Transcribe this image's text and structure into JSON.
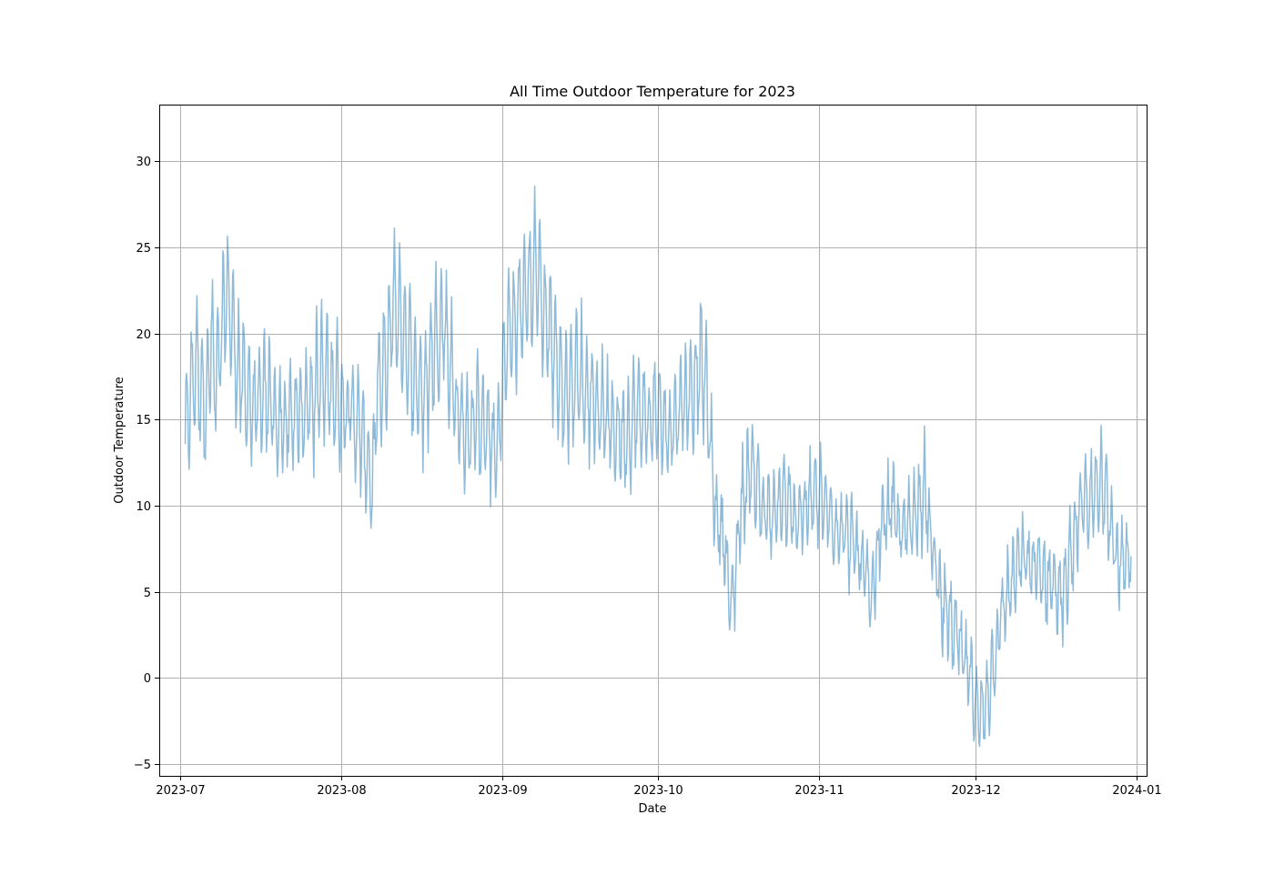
{
  "chart_data": {
    "type": "line",
    "title": "All Time Outdoor Temperature for 2023",
    "xlabel": "Date",
    "ylabel": "Outdoor Temperature",
    "xlim": [
      "2023-06-27",
      "2024-01-03"
    ],
    "ylim": [
      -5.7,
      33.3
    ],
    "grid": true,
    "series_color": "#1f77b4",
    "series_alpha": 0.5,
    "x_ticks": [
      {
        "date": "2023-07-01",
        "label": "2023-07"
      },
      {
        "date": "2023-08-01",
        "label": "2023-08"
      },
      {
        "date": "2023-09-01",
        "label": "2023-09"
      },
      {
        "date": "2023-10-01",
        "label": "2023-10"
      },
      {
        "date": "2023-11-01",
        "label": "2023-11"
      },
      {
        "date": "2023-12-01",
        "label": "2023-12"
      },
      {
        "date": "2024-01-01",
        "label": "2024-01"
      }
    ],
    "y_ticks": [
      {
        "value": -5,
        "label": "−5"
      },
      {
        "value": 0,
        "label": "0"
      },
      {
        "value": 5,
        "label": "5"
      },
      {
        "value": 10,
        "label": "10"
      },
      {
        "value": 15,
        "label": "15"
      },
      {
        "value": 20,
        "label": "20"
      },
      {
        "value": 25,
        "label": "25"
      },
      {
        "value": 30,
        "label": "30"
      }
    ],
    "series": [
      {
        "x": [
          "2023-07-02",
          "2023-07-04",
          "2023-07-06",
          "2023-07-07",
          "2023-07-08",
          "2023-07-10",
          "2023-07-12",
          "2023-07-14",
          "2023-07-16",
          "2023-07-18",
          "2023-07-20",
          "2023-07-22",
          "2023-07-24",
          "2023-07-26",
          "2023-07-28",
          "2023-07-30",
          "2023-08-01",
          "2023-08-03",
          "2023-08-05",
          "2023-08-07",
          "2023-08-08",
          "2023-08-10",
          "2023-08-11",
          "2023-08-13",
          "2023-08-15",
          "2023-08-17",
          "2023-08-19",
          "2023-08-21",
          "2023-08-23",
          "2023-08-25",
          "2023-08-27",
          "2023-08-29",
          "2023-08-31",
          "2023-09-02",
          "2023-09-04",
          "2023-09-06",
          "2023-09-08",
          "2023-09-09",
          "2023-09-11",
          "2023-09-13",
          "2023-09-15",
          "2023-09-17",
          "2023-09-19",
          "2023-09-21",
          "2023-09-23",
          "2023-09-25",
          "2023-09-27",
          "2023-09-29",
          "2023-10-01",
          "2023-10-03",
          "2023-10-05",
          "2023-10-07",
          "2023-10-09",
          "2023-10-10",
          "2023-10-12",
          "2023-10-14",
          "2023-10-15",
          "2023-10-17",
          "2023-10-19",
          "2023-10-21",
          "2023-10-23",
          "2023-10-25",
          "2023-10-27",
          "2023-10-29",
          "2023-10-31",
          "2023-11-02",
          "2023-11-04",
          "2023-11-06",
          "2023-11-08",
          "2023-11-10",
          "2023-11-11",
          "2023-11-13",
          "2023-11-15",
          "2023-11-17",
          "2023-11-19",
          "2023-11-21",
          "2023-11-23",
          "2023-11-25",
          "2023-11-27",
          "2023-11-29",
          "2023-12-01",
          "2023-12-02",
          "2023-12-04",
          "2023-12-06",
          "2023-12-08",
          "2023-12-10",
          "2023-12-12",
          "2023-12-14",
          "2023-12-16",
          "2023-12-18",
          "2023-12-20",
          "2023-12-22",
          "2023-12-24",
          "2023-12-26",
          "2023-12-28",
          "2023-12-30",
          "2023-12-31"
        ],
        "y": [
          14.0,
          18.5,
          15.5,
          19.5,
          17.0,
          22.5,
          18.0,
          16.5,
          15.5,
          16.5,
          14.5,
          15.0,
          15.5,
          16.0,
          17.5,
          17.0,
          16.0,
          15.5,
          14.0,
          11.0,
          16.5,
          18.5,
          22.0,
          20.0,
          17.5,
          16.5,
          19.5,
          20.5,
          16.0,
          14.0,
          15.0,
          14.5,
          13.0,
          20.0,
          21.0,
          22.5,
          24.0,
          21.0,
          19.0,
          16.5,
          17.5,
          17.0,
          16.0,
          15.0,
          14.5,
          14.0,
          15.5,
          15.0,
          15.5,
          14.0,
          15.5,
          16.5,
          18.0,
          17.5,
          10.0,
          7.5,
          3.5,
          10.0,
          12.5,
          10.0,
          9.0,
          10.5,
          9.5,
          9.5,
          10.5,
          10.0,
          9.0,
          8.5,
          7.5,
          6.0,
          4.0,
          9.0,
          10.0,
          8.0,
          9.5,
          11.0,
          7.0,
          4.0,
          2.5,
          1.0,
          -1.0,
          -2.5,
          0.0,
          3.5,
          5.5,
          7.0,
          6.5,
          6.0,
          5.5,
          4.5,
          8.0,
          10.0,
          10.5,
          11.5,
          7.0,
          6.5,
          6.5
        ]
      }
    ]
  }
}
